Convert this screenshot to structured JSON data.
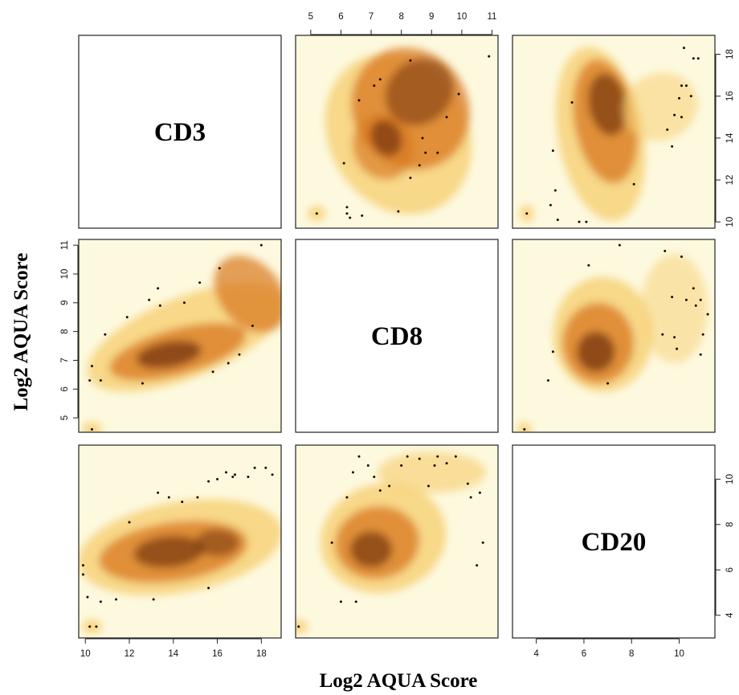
{
  "chart_data": {
    "type": "scatter",
    "subtype": "smoothed density scatterplot matrix",
    "variables": [
      "CD3",
      "CD8",
      "CD20"
    ],
    "xlabel": "Log2 AQUA Score",
    "ylabel": "Log2 AQUA Score",
    "colors": {
      "background": "#fdf9df",
      "low": "#f7d27a",
      "mid": "#d9781f",
      "high": "#5a1d04"
    },
    "axes": {
      "CD3": {
        "range": [
          9.7,
          18.9
        ],
        "ticks": [
          "10",
          "12",
          "14",
          "16",
          "18"
        ]
      },
      "CD8": {
        "range": [
          4.5,
          11.2
        ],
        "ticks": [
          "5",
          "6",
          "7",
          "8",
          "9",
          "10",
          "11"
        ]
      },
      "CD20": {
        "range": [
          3.0,
          11.5
        ],
        "ticks": [
          "4",
          "6",
          "8",
          "10"
        ]
      }
    },
    "panels": [
      {
        "x_var": "CD8",
        "y_var": "CD3",
        "outliers": [
          [
            5.2,
            10.4
          ],
          [
            6.3,
            10.2
          ],
          [
            6.2,
            10.4
          ],
          [
            6.2,
            10.7
          ],
          [
            6.7,
            10.3
          ],
          [
            7.9,
            10.5
          ],
          [
            6.1,
            12.8
          ],
          [
            8.3,
            12.1
          ],
          [
            8.8,
            13.3
          ],
          [
            8.6,
            12.7
          ],
          [
            8.7,
            14.0
          ],
          [
            9.2,
            13.3
          ],
          [
            9.5,
            15.0
          ],
          [
            9.9,
            16.1
          ],
          [
            6.6,
            15.8
          ],
          [
            7.1,
            16.5
          ],
          [
            7.3,
            16.8
          ],
          [
            8.3,
            17.7
          ],
          [
            10.9,
            17.9
          ]
        ]
      },
      {
        "x_var": "CD20",
        "y_var": "CD3",
        "outliers": [
          [
            3.6,
            10.4
          ],
          [
            4.9,
            10.1
          ],
          [
            5.8,
            10.0
          ],
          [
            6.1,
            10.0
          ],
          [
            4.6,
            10.8
          ],
          [
            4.8,
            11.5
          ],
          [
            4.7,
            13.4
          ],
          [
            5.5,
            15.7
          ],
          [
            8.1,
            11.8
          ],
          [
            9.7,
            13.6
          ],
          [
            9.5,
            14.4
          ],
          [
            9.8,
            15.1
          ],
          [
            10.1,
            15.0
          ],
          [
            10.0,
            15.9
          ],
          [
            10.1,
            16.5
          ],
          [
            10.3,
            16.5
          ],
          [
            10.5,
            16.0
          ],
          [
            10.2,
            18.3
          ],
          [
            10.6,
            17.8
          ],
          [
            10.8,
            17.8
          ]
        ]
      },
      {
        "x_var": "CD3",
        "y_var": "CD8",
        "outliers": [
          [
            10.3,
            4.6
          ],
          [
            10.2,
            6.3
          ],
          [
            10.3,
            6.8
          ],
          [
            10.7,
            6.3
          ],
          [
            10.9,
            7.9
          ],
          [
            11.9,
            8.5
          ],
          [
            12.9,
            9.1
          ],
          [
            13.3,
            9.5
          ],
          [
            13.4,
            8.9
          ],
          [
            12.6,
            6.2
          ],
          [
            14.5,
            9.0
          ],
          [
            15.2,
            9.7
          ],
          [
            16.1,
            10.2
          ],
          [
            15.8,
            6.6
          ],
          [
            16.5,
            6.9
          ],
          [
            17.0,
            7.2
          ],
          [
            17.6,
            8.2
          ],
          [
            18.0,
            11.0
          ]
        ]
      },
      {
        "x_var": "CD20",
        "y_var": "CD8",
        "outliers": [
          [
            3.5,
            4.6
          ],
          [
            4.5,
            6.3
          ],
          [
            4.7,
            7.3
          ],
          [
            7.0,
            6.2
          ],
          [
            6.2,
            10.3
          ],
          [
            7.5,
            11.0
          ],
          [
            9.4,
            10.8
          ],
          [
            10.1,
            10.6
          ],
          [
            10.6,
            9.5
          ],
          [
            10.9,
            9.1
          ],
          [
            10.3,
            9.1
          ],
          [
            9.7,
            9.2
          ],
          [
            9.8,
            7.8
          ],
          [
            9.3,
            7.9
          ],
          [
            9.9,
            7.4
          ],
          [
            10.7,
            8.9
          ],
          [
            11.0,
            7.9
          ],
          [
            10.9,
            7.2
          ],
          [
            11.2,
            8.6
          ]
        ]
      },
      {
        "x_var": "CD3",
        "y_var": "CD20",
        "outliers": [
          [
            10.2,
            3.5
          ],
          [
            10.5,
            3.5
          ],
          [
            10.1,
            4.8
          ],
          [
            10.7,
            4.6
          ],
          [
            11.4,
            4.7
          ],
          [
            13.1,
            4.7
          ],
          [
            15.6,
            5.2
          ],
          [
            9.9,
            5.8
          ],
          [
            9.9,
            6.2
          ],
          [
            12.0,
            8.1
          ],
          [
            13.3,
            9.4
          ],
          [
            13.8,
            9.2
          ],
          [
            14.4,
            9.0
          ],
          [
            15.1,
            9.2
          ],
          [
            15.6,
            9.9
          ],
          [
            16.0,
            10.0
          ],
          [
            16.4,
            10.3
          ],
          [
            16.7,
            10.1
          ],
          [
            16.8,
            10.2
          ],
          [
            17.4,
            10.1
          ],
          [
            17.7,
            10.5
          ],
          [
            18.2,
            10.5
          ],
          [
            18.5,
            10.2
          ]
        ]
      },
      {
        "x_var": "CD8",
        "y_var": "CD20",
        "outliers": [
          [
            4.6,
            3.5
          ],
          [
            6.0,
            4.6
          ],
          [
            6.5,
            4.6
          ],
          [
            5.7,
            7.2
          ],
          [
            6.2,
            9.2
          ],
          [
            6.4,
            10.3
          ],
          [
            6.6,
            11.0
          ],
          [
            6.9,
            10.6
          ],
          [
            7.1,
            10.1
          ],
          [
            7.3,
            9.5
          ],
          [
            7.6,
            9.7
          ],
          [
            8.0,
            10.6
          ],
          [
            8.2,
            11.0
          ],
          [
            8.6,
            10.9
          ],
          [
            8.9,
            9.7
          ],
          [
            9.1,
            10.6
          ],
          [
            9.2,
            11.0
          ],
          [
            9.5,
            10.7
          ],
          [
            9.8,
            11.0
          ],
          [
            10.2,
            9.8
          ],
          [
            10.3,
            9.2
          ],
          [
            10.6,
            9.4
          ],
          [
            10.7,
            7.2
          ],
          [
            10.5,
            6.2
          ]
        ]
      }
    ]
  }
}
